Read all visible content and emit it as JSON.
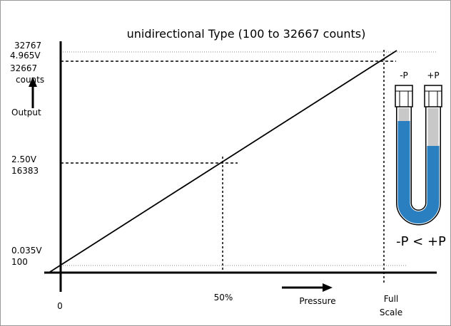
{
  "title": "unidirectional Type (100 to 32667 counts)",
  "y_labels": {
    "max_counts": "32767",
    "max_volts": "4.965V",
    "top_counts": "32667",
    "counts_unit": "counts",
    "output": "Output",
    "mid_volts": "2.50V",
    "mid_counts": "16383",
    "min_volts": "0.035V",
    "min_counts": "100"
  },
  "x_labels": {
    "zero": "0",
    "half": "50%",
    "pressure": "Pressure",
    "full_line1": "Full",
    "full_line2": "Scale"
  },
  "manometer": {
    "low_port": "-P",
    "high_port": "+P",
    "relation": "-P < +P"
  }
}
